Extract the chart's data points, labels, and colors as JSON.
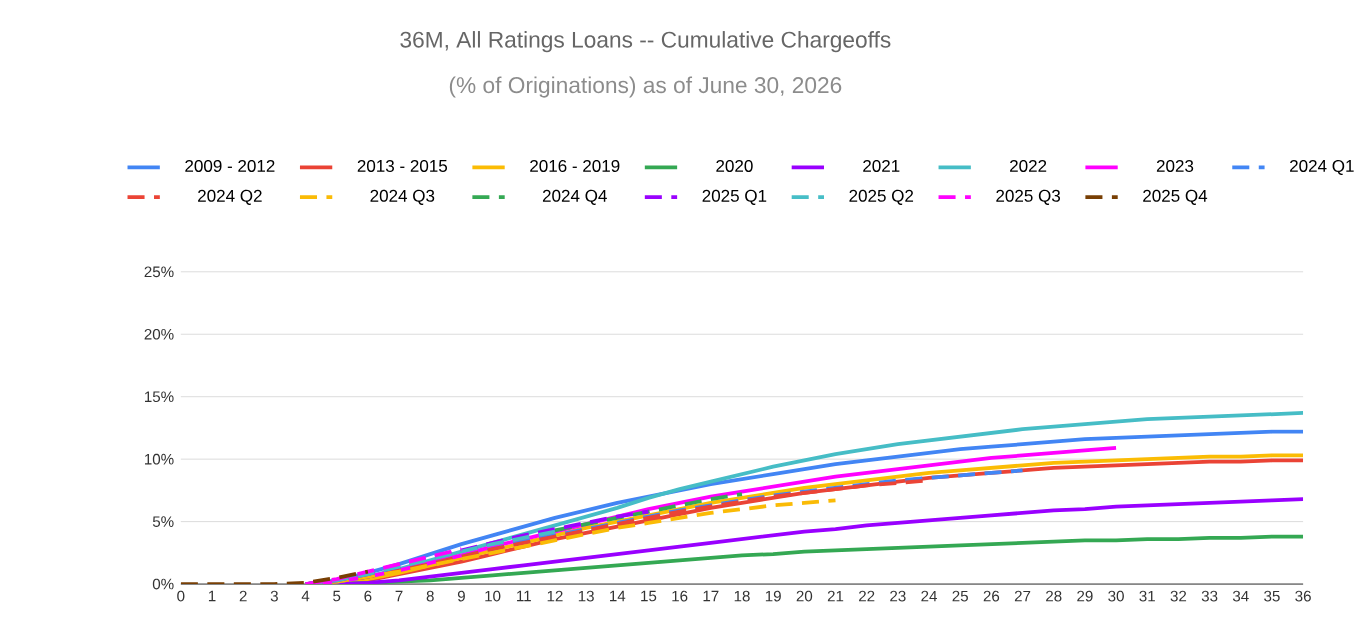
{
  "chart_data": {
    "type": "line",
    "title": "36M, All Ratings Loans -- Cumulative Chargeoffs",
    "subtitle": "(% of Originations) as of June 30, 2026",
    "x": [
      0,
      1,
      2,
      3,
      4,
      5,
      6,
      7,
      8,
      9,
      10,
      11,
      12,
      13,
      14,
      15,
      16,
      17,
      18,
      19,
      20,
      21,
      22,
      23,
      24,
      25,
      26,
      27,
      28,
      29,
      30,
      31,
      32,
      33,
      34,
      35,
      36
    ],
    "xlim": [
      0,
      36
    ],
    "xticks": [
      0,
      1,
      2,
      3,
      4,
      5,
      6,
      7,
      8,
      9,
      10,
      11,
      12,
      13,
      14,
      15,
      16,
      17,
      18,
      19,
      20,
      21,
      22,
      23,
      24,
      25,
      26,
      27,
      28,
      29,
      30,
      31,
      32,
      33,
      34,
      35,
      36
    ],
    "ylim": [
      0,
      25
    ],
    "yticks": [
      {
        "value": 0,
        "label": "0%"
      },
      {
        "value": 5,
        "label": "5%"
      },
      {
        "value": 10,
        "label": "10%"
      },
      {
        "value": 15,
        "label": "15%"
      },
      {
        "value": 20,
        "label": "20%"
      },
      {
        "value": 25,
        "label": "25%"
      }
    ],
    "grid": "y",
    "legend": "top",
    "marker": "none",
    "series": [
      {
        "name": "2009 - 2012",
        "color": "#4285f4",
        "line_style": "solid",
        "values": [
          null,
          null,
          null,
          null,
          0,
          0.3,
          0.9,
          1.6,
          2.4,
          3.2,
          3.9,
          4.6,
          5.3,
          5.9,
          6.5,
          7.0,
          7.5,
          8.0,
          8.4,
          8.8,
          9.2,
          9.6,
          9.9,
          10.2,
          10.5,
          10.8,
          11.0,
          11.2,
          11.4,
          11.6,
          11.7,
          11.8,
          11.9,
          12.0,
          12.1,
          12.2,
          12.2
        ]
      },
      {
        "name": "2013 - 2015",
        "color": "#ea4335",
        "line_style": "solid",
        "values": [
          null,
          null,
          null,
          null,
          0,
          0.1,
          0.3,
          0.8,
          1.3,
          1.8,
          2.4,
          3.0,
          3.6,
          4.1,
          4.6,
          5.1,
          5.6,
          6.1,
          6.5,
          6.9,
          7.3,
          7.6,
          7.9,
          8.2,
          8.5,
          8.7,
          8.9,
          9.1,
          9.3,
          9.4,
          9.5,
          9.6,
          9.7,
          9.8,
          9.8,
          9.9,
          9.9
        ]
      },
      {
        "name": "2016 - 2019",
        "color": "#fbbc04",
        "line_style": "solid",
        "values": [
          null,
          null,
          null,
          null,
          0,
          0.1,
          0.4,
          0.9,
          1.5,
          2.1,
          2.7,
          3.3,
          3.9,
          4.5,
          5.0,
          5.5,
          6.0,
          6.5,
          6.9,
          7.3,
          7.7,
          8.0,
          8.3,
          8.6,
          8.9,
          9.1,
          9.3,
          9.5,
          9.7,
          9.8,
          9.9,
          10.0,
          10.1,
          10.2,
          10.2,
          10.3,
          10.3
        ]
      },
      {
        "name": "2020",
        "color": "#34a853",
        "line_style": "solid",
        "values": [
          null,
          null,
          null,
          null,
          0,
          0,
          0.1,
          0.2,
          0.3,
          0.5,
          0.7,
          0.9,
          1.1,
          1.3,
          1.5,
          1.7,
          1.9,
          2.1,
          2.3,
          2.4,
          2.6,
          2.7,
          2.8,
          2.9,
          3.0,
          3.1,
          3.2,
          3.3,
          3.4,
          3.5,
          3.5,
          3.6,
          3.6,
          3.7,
          3.7,
          3.8,
          3.8
        ]
      },
      {
        "name": "2021",
        "color": "#9900ff",
        "line_style": "solid",
        "values": [
          null,
          null,
          null,
          null,
          0,
          0,
          0.1,
          0.3,
          0.6,
          0.9,
          1.2,
          1.5,
          1.8,
          2.1,
          2.4,
          2.7,
          3.0,
          3.3,
          3.6,
          3.9,
          4.2,
          4.4,
          4.7,
          4.9,
          5.1,
          5.3,
          5.5,
          5.7,
          5.9,
          6.0,
          6.2,
          6.3,
          6.4,
          6.5,
          6.6,
          6.7,
          6.8
        ]
      },
      {
        "name": "2022",
        "color": "#46bdc6",
        "line_style": "solid",
        "values": [
          null,
          null,
          null,
          null,
          0,
          0.2,
          0.6,
          1.2,
          1.9,
          2.6,
          3.3,
          4.0,
          4.7,
          5.4,
          6.1,
          6.9,
          7.6,
          8.2,
          8.8,
          9.4,
          9.9,
          10.4,
          10.8,
          11.2,
          11.5,
          11.8,
          12.1,
          12.4,
          12.6,
          12.8,
          13.0,
          13.2,
          13.3,
          13.4,
          13.5,
          13.6,
          13.7
        ]
      },
      {
        "name": "2023",
        "color": "#ff00ff",
        "line_style": "solid",
        "values": [
          null,
          null,
          null,
          null,
          0,
          0.2,
          0.6,
          1.1,
          1.7,
          2.3,
          3.0,
          3.6,
          4.2,
          4.8,
          5.4,
          6.0,
          6.5,
          7.0,
          7.4,
          7.8,
          8.2,
          8.6,
          8.9,
          9.2,
          9.5,
          9.8,
          10.1,
          10.3,
          10.5,
          10.7,
          10.9,
          null,
          null,
          null,
          null,
          null,
          null
        ]
      },
      {
        "name": "2024 Q1",
        "color": "#4286f5",
        "line_style": "dashed",
        "values": [
          null,
          null,
          null,
          null,
          0,
          0.2,
          0.6,
          1.1,
          1.6,
          2.2,
          2.8,
          3.4,
          3.9,
          4.4,
          4.9,
          5.4,
          5.9,
          6.3,
          6.7,
          7.1,
          7.4,
          7.7,
          8.0,
          8.3,
          8.5,
          8.7,
          8.9,
          9.1,
          null,
          null,
          null,
          null,
          null,
          null,
          null,
          null,
          null
        ]
      },
      {
        "name": "2024 Q2",
        "color": "#eb4436",
        "line_style": "dashed",
        "values": [
          null,
          null,
          null,
          null,
          0,
          0.2,
          0.6,
          1.1,
          1.6,
          2.2,
          2.8,
          3.3,
          3.8,
          4.3,
          4.8,
          5.3,
          5.8,
          6.2,
          6.6,
          7.0,
          7.3,
          7.6,
          7.9,
          8.1,
          8.3,
          null,
          null,
          null,
          null,
          null,
          null,
          null,
          null,
          null,
          null,
          null,
          null
        ]
      },
      {
        "name": "2024 Q3",
        "color": "#fabb06",
        "line_style": "dashed",
        "values": [
          null,
          null,
          null,
          null,
          0,
          0.2,
          0.6,
          1.0,
          1.5,
          2.0,
          2.5,
          3.0,
          3.5,
          4.0,
          4.5,
          4.9,
          5.3,
          5.7,
          6.0,
          6.3,
          6.5,
          6.7,
          null,
          null,
          null,
          null,
          null,
          null,
          null,
          null,
          null,
          null,
          null,
          null,
          null,
          null,
          null
        ]
      },
      {
        "name": "2024 Q4",
        "color": "#35a954",
        "line_style": "dashed",
        "values": [
          null,
          null,
          null,
          null,
          null,
          null,
          null,
          null,
          null,
          null,
          null,
          null,
          4.3,
          4.8,
          5.3,
          5.8,
          6.3,
          6.8,
          7.2,
          null,
          null,
          null,
          null,
          null,
          null,
          null,
          null,
          null,
          null,
          null,
          null,
          null,
          null,
          null,
          null,
          null,
          null
        ]
      },
      {
        "name": "2025 Q1",
        "color": "#9a02fe",
        "line_style": "dashed",
        "values": [
          null,
          null,
          null,
          null,
          0,
          0.3,
          0.8,
          1.4,
          2.1,
          2.7,
          3.3,
          3.9,
          4.4,
          4.9,
          5.4,
          5.8,
          null,
          null,
          null,
          null,
          null,
          null,
          null,
          null,
          null,
          null,
          null,
          null,
          null,
          null,
          null,
          null,
          null,
          null,
          null,
          null,
          null
        ]
      },
      {
        "name": "2025 Q2",
        "color": "#47bec7",
        "line_style": "dashed",
        "values": [
          null,
          null,
          null,
          null,
          0,
          0.3,
          0.8,
          1.4,
          2.0,
          2.6,
          3.2,
          3.7,
          4.2,
          null,
          null,
          null,
          null,
          null,
          null,
          null,
          null,
          null,
          null,
          null,
          null,
          null,
          null,
          null,
          null,
          null,
          null,
          null,
          null,
          null,
          null,
          null,
          null
        ]
      },
      {
        "name": "2025 Q3",
        "color": "#fe02fe",
        "line_style": "dashed",
        "values": [
          null,
          null,
          null,
          null,
          0,
          0.4,
          1.0,
          1.6,
          2.2,
          2.8,
          null,
          null,
          null,
          null,
          null,
          null,
          null,
          null,
          null,
          null,
          null,
          null,
          null,
          null,
          null,
          null,
          null,
          null,
          null,
          null,
          null,
          null,
          null,
          null,
          null,
          null,
          null
        ]
      },
      {
        "name": "2025 Q4",
        "color": "#783f04",
        "line_style": "dashed",
        "values": [
          0,
          0,
          0,
          0,
          0.1,
          0.5,
          1.0,
          null,
          null,
          null,
          null,
          null,
          null,
          null,
          null,
          null,
          null,
          null,
          null,
          null,
          null,
          null,
          null,
          null,
          null,
          null,
          null,
          null,
          null,
          null,
          null,
          null,
          null,
          null,
          null,
          null,
          null
        ]
      }
    ]
  }
}
